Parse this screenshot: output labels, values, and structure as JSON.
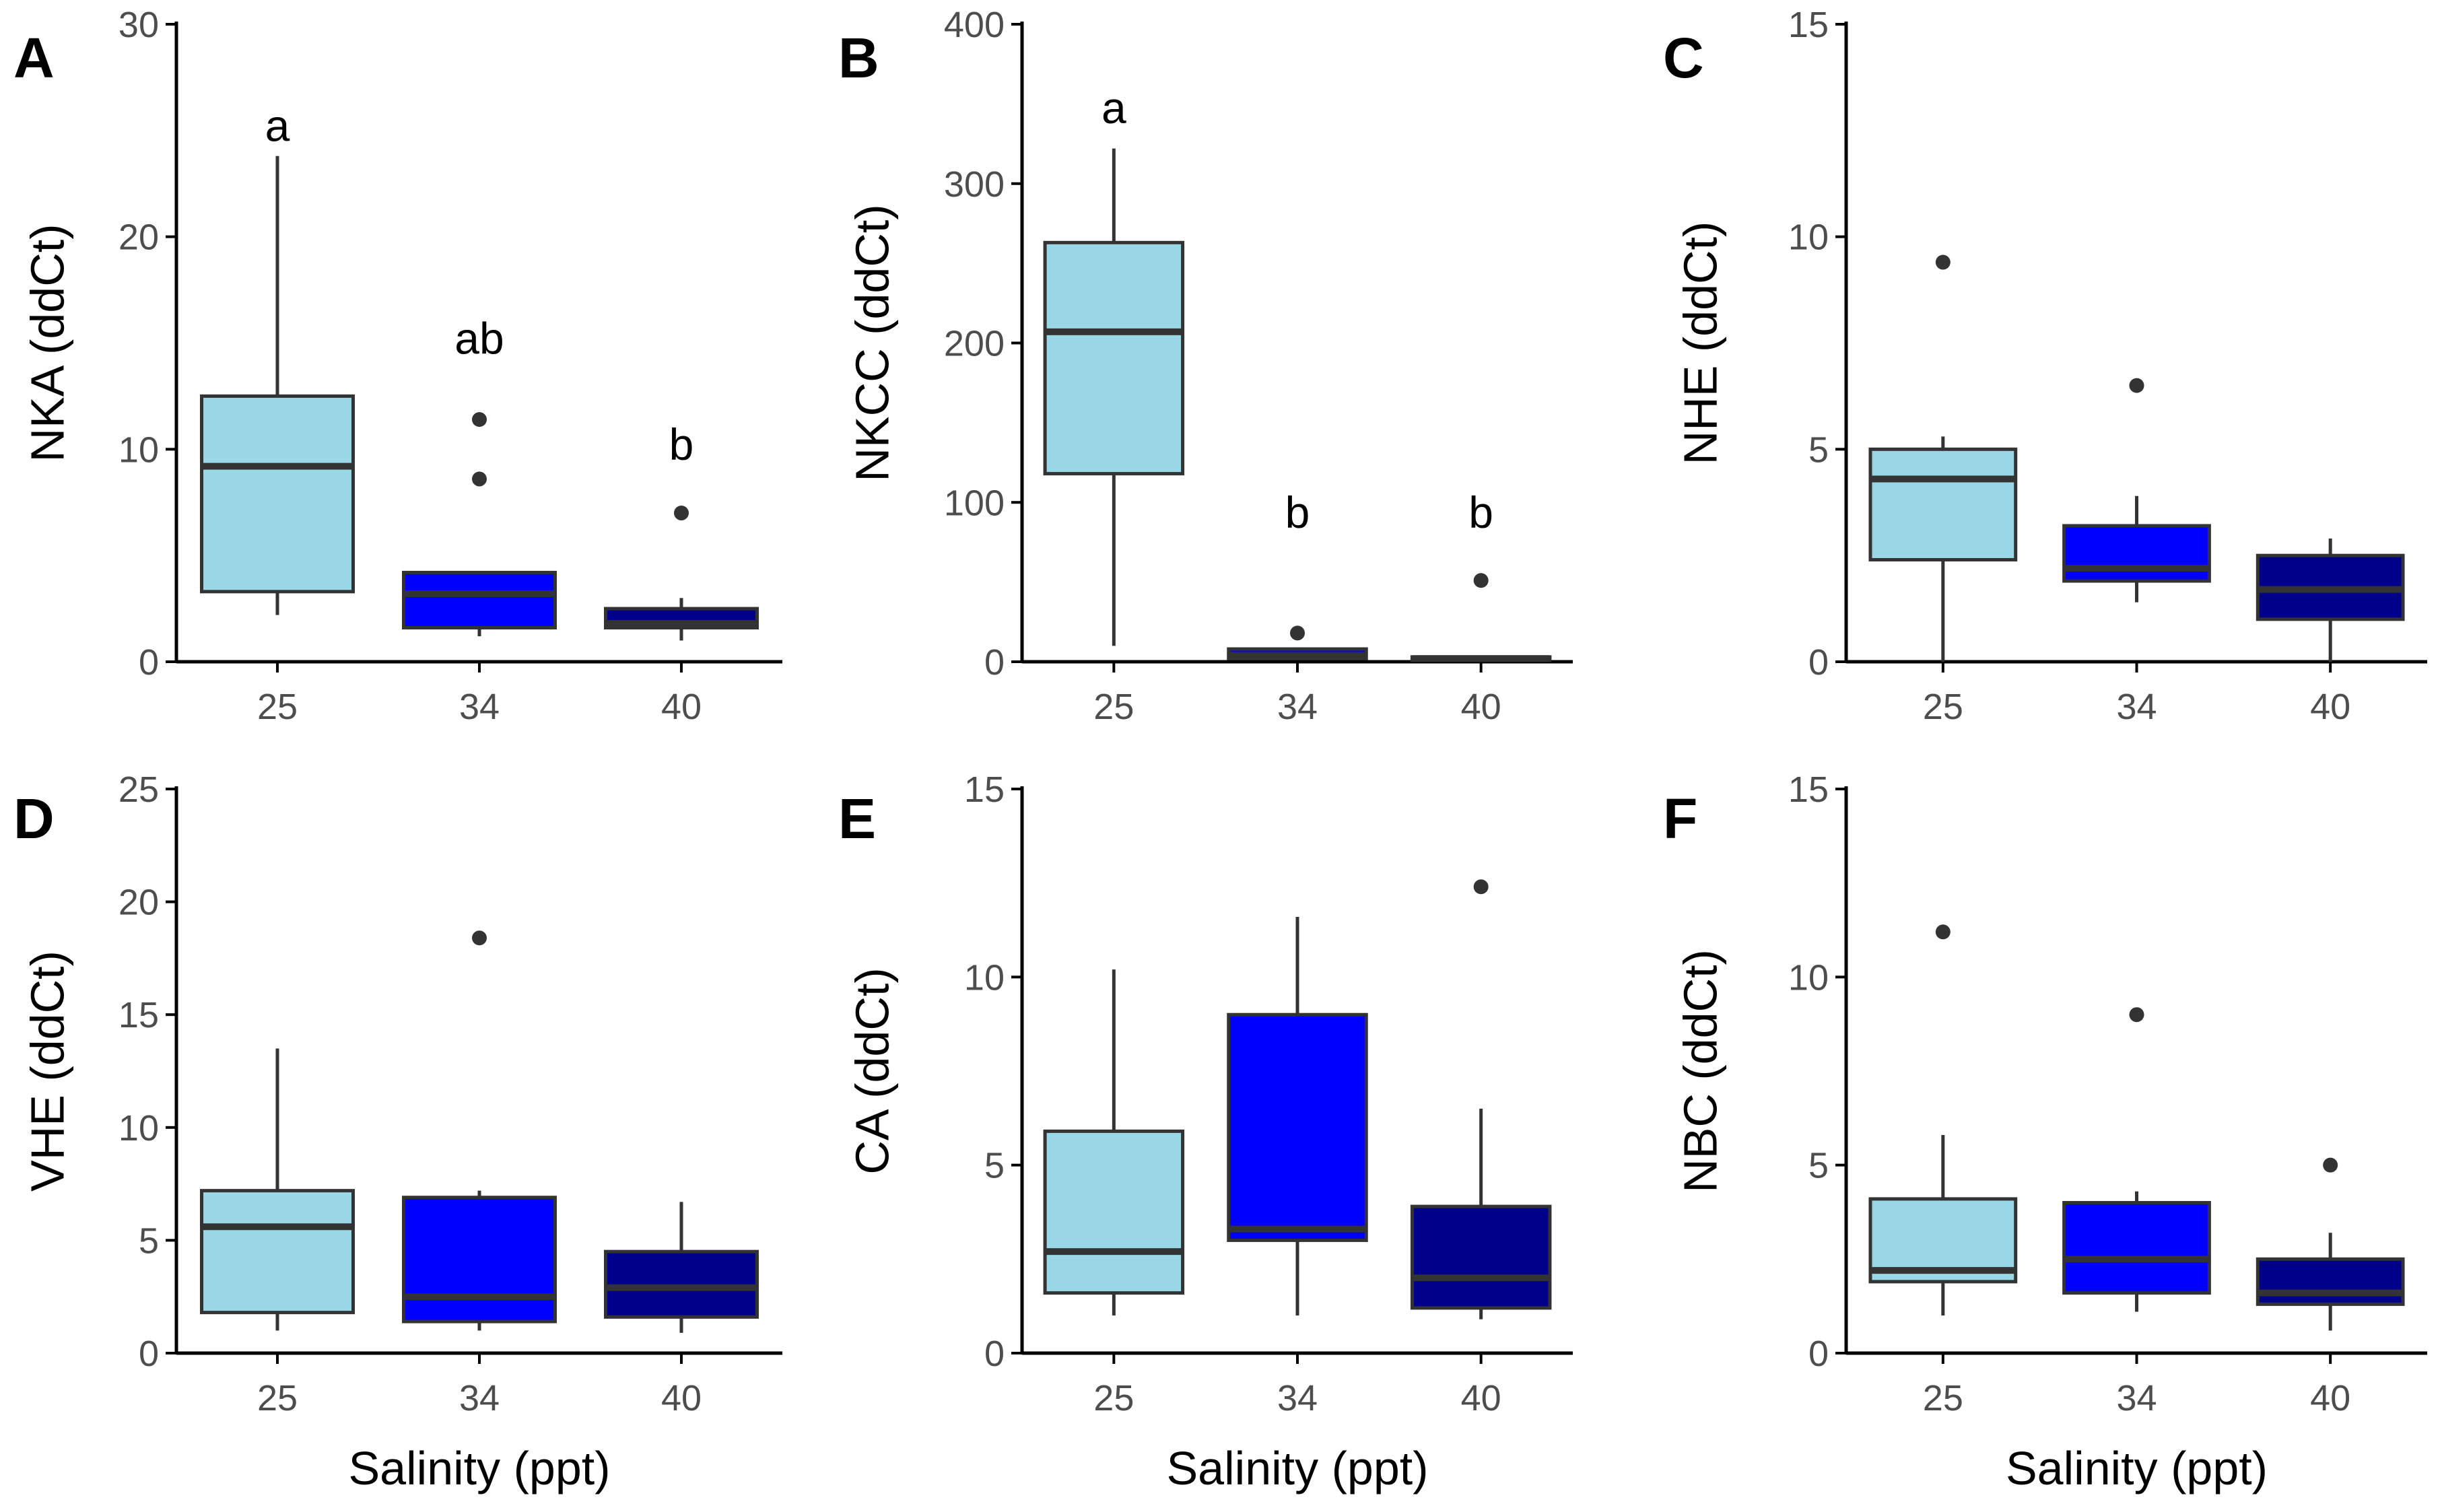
{
  "colors": {
    "box_fills": [
      "#99d7e6",
      "#0000ff",
      "#00008b"
    ],
    "box_stroke": "#333333",
    "axis": "#000000",
    "outlier": "#333333"
  },
  "chart_data": [
    {
      "type": "box",
      "panel": "A",
      "ylabel": "NKA (ddCt)",
      "xlabel": "",
      "categories": [
        "25",
        "34",
        "40"
      ],
      "ylim": [
        0,
        30
      ],
      "yticks": [
        0,
        10,
        20,
        30
      ],
      "boxes": [
        {
          "q1": 3.3,
          "median": 9.2,
          "q3": 12.5,
          "whisker_low": 2.2,
          "whisker_high": 23.8,
          "outliers": []
        },
        {
          "q1": 1.6,
          "median": 3.2,
          "q3": 4.2,
          "whisker_low": 1.2,
          "whisker_high": 4.2,
          "outliers": [
            8.6,
            11.4
          ]
        },
        {
          "q1": 1.6,
          "median": 1.8,
          "q3": 2.5,
          "whisker_low": 1.0,
          "whisker_high": 3.0,
          "outliers": [
            7.0
          ]
        }
      ],
      "significance": [
        "a",
        "ab",
        "b"
      ],
      "significance_y": [
        24.5,
        14.5,
        9.5
      ]
    },
    {
      "type": "box",
      "panel": "B",
      "ylabel": "NKCC (ddCt)",
      "xlabel": "",
      "categories": [
        "25",
        "34",
        "40"
      ],
      "ylim": [
        0,
        400
      ],
      "yticks": [
        0,
        100,
        200,
        300,
        400
      ],
      "boxes": [
        {
          "q1": 118,
          "median": 207,
          "q3": 263,
          "whisker_low": 10,
          "whisker_high": 322,
          "outliers": []
        },
        {
          "q1": 2,
          "median": 4,
          "q3": 8,
          "whisker_low": 1,
          "whisker_high": 9,
          "outliers": [
            18
          ]
        },
        {
          "q1": 1,
          "median": 2,
          "q3": 3,
          "whisker_low": 0.5,
          "whisker_high": 4,
          "outliers": [
            51
          ]
        }
      ],
      "significance": [
        "a",
        "b",
        "b"
      ],
      "significance_y": [
        338,
        84,
        84
      ]
    },
    {
      "type": "box",
      "panel": "C",
      "ylabel": "NHE (ddCt)",
      "xlabel": "",
      "categories": [
        "25",
        "34",
        "40"
      ],
      "ylim": [
        0,
        15
      ],
      "yticks": [
        0,
        5,
        10,
        15
      ],
      "boxes": [
        {
          "q1": 2.4,
          "median": 4.3,
          "q3": 5.0,
          "whisker_low": 0.0,
          "whisker_high": 5.3,
          "outliers": [
            9.4
          ]
        },
        {
          "q1": 1.9,
          "median": 2.2,
          "q3": 3.2,
          "whisker_low": 1.4,
          "whisker_high": 3.9,
          "outliers": [
            6.5
          ]
        },
        {
          "q1": 1.0,
          "median": 1.7,
          "q3": 2.5,
          "whisker_low": 0.0,
          "whisker_high": 2.9,
          "outliers": []
        }
      ],
      "significance": [],
      "significance_y": []
    },
    {
      "type": "box",
      "panel": "D",
      "ylabel": "VHE (ddCt)",
      "xlabel": "Salinity (ppt)",
      "categories": [
        "25",
        "34",
        "40"
      ],
      "ylim": [
        0,
        25
      ],
      "yticks": [
        0,
        5,
        10,
        15,
        20,
        25
      ],
      "boxes": [
        {
          "q1": 1.8,
          "median": 5.6,
          "q3": 7.2,
          "whisker_low": 1.0,
          "whisker_high": 13.5,
          "outliers": []
        },
        {
          "q1": 1.4,
          "median": 2.5,
          "q3": 6.9,
          "whisker_low": 1.0,
          "whisker_high": 7.2,
          "outliers": [
            18.4
          ]
        },
        {
          "q1": 1.6,
          "median": 2.9,
          "q3": 4.5,
          "whisker_low": 0.9,
          "whisker_high": 6.7,
          "outliers": []
        }
      ],
      "significance": [],
      "significance_y": []
    },
    {
      "type": "box",
      "panel": "E",
      "ylabel": "CA (ddCt)",
      "xlabel": "Salinity (ppt)",
      "categories": [
        "25",
        "34",
        "40"
      ],
      "ylim": [
        0,
        15
      ],
      "yticks": [
        0,
        5,
        10,
        15
      ],
      "boxes": [
        {
          "q1": 1.6,
          "median": 2.7,
          "q3": 5.9,
          "whisker_low": 1.0,
          "whisker_high": 10.2,
          "outliers": []
        },
        {
          "q1": 3.0,
          "median": 3.3,
          "q3": 9.0,
          "whisker_low": 1.0,
          "whisker_high": 11.6,
          "outliers": []
        },
        {
          "q1": 1.2,
          "median": 2.0,
          "q3": 3.9,
          "whisker_low": 0.9,
          "whisker_high": 6.5,
          "outliers": [
            12.4
          ]
        }
      ],
      "significance": [],
      "significance_y": []
    },
    {
      "type": "box",
      "panel": "F",
      "ylabel": "NBC (ddCt)",
      "xlabel": "Salinity (ppt)",
      "categories": [
        "25",
        "34",
        "40"
      ],
      "ylim": [
        0,
        15
      ],
      "yticks": [
        0,
        5,
        10,
        15
      ],
      "boxes": [
        {
          "q1": 1.9,
          "median": 2.2,
          "q3": 4.1,
          "whisker_low": 1.0,
          "whisker_high": 5.8,
          "outliers": [
            11.2
          ]
        },
        {
          "q1": 1.6,
          "median": 2.5,
          "q3": 4.0,
          "whisker_low": 1.1,
          "whisker_high": 4.3,
          "outliers": [
            9.0
          ]
        },
        {
          "q1": 1.3,
          "median": 1.6,
          "q3": 2.5,
          "whisker_low": 0.6,
          "whisker_high": 3.2,
          "outliers": [
            5.0
          ]
        }
      ],
      "significance": [],
      "significance_y": []
    }
  ]
}
